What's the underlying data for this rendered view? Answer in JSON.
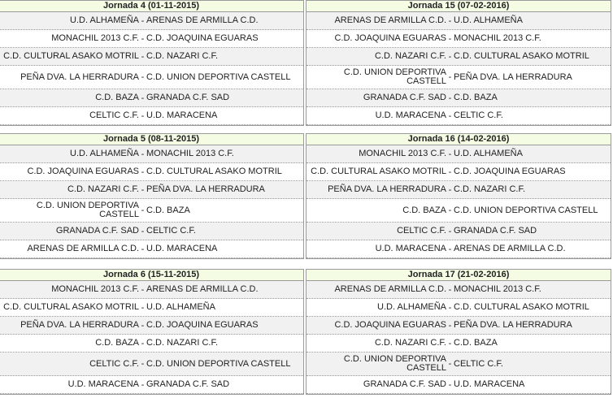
{
  "blocks": [
    {
      "title": "Jornada 4 (01-11-2015)",
      "matches": [
        [
          "U.D. ALHAMEÑA",
          "ARENAS DE ARMILLA C.D."
        ],
        [
          "MONACHIL 2013 C.F.",
          "C.D. JOAQUINA EGUARAS"
        ],
        [
          "C.D. CULTURAL ASAKO MOTRIL",
          "C.D. NAZARI C.F."
        ],
        [
          "PEÑA DVA. LA HERRADURA",
          "C.D. UNION DEPORTIVA CASTELL"
        ],
        [
          "C.D. BAZA",
          "GRANADA C.F. SAD"
        ],
        [
          "CELTIC C.F.",
          "U.D. MARACENA"
        ]
      ]
    },
    {
      "title": "Jornada 15 (07-02-2016)",
      "matches": [
        [
          "ARENAS DE ARMILLA C.D.",
          "U.D. ALHAMEÑA"
        ],
        [
          "C.D. JOAQUINA EGUARAS",
          "MONACHIL 2013 C.F."
        ],
        [
          "C.D. NAZARI C.F.",
          "C.D. CULTURAL ASAKO MOTRIL"
        ],
        [
          "C.D. UNION DEPORTIVA CASTELL",
          "PEÑA DVA. LA HERRADURA"
        ],
        [
          "GRANADA C.F. SAD",
          "C.D. BAZA"
        ],
        [
          "U.D. MARACENA",
          "CELTIC C.F."
        ]
      ]
    },
    {
      "title": "Jornada 5 (08-11-2015)",
      "matches": [
        [
          "U.D. ALHAMEÑA",
          "MONACHIL 2013 C.F."
        ],
        [
          "C.D. JOAQUINA EGUARAS",
          "C.D. CULTURAL ASAKO MOTRIL"
        ],
        [
          "C.D. NAZARI C.F.",
          "PEÑA DVA. LA HERRADURA"
        ],
        [
          "C.D. UNION DEPORTIVA CASTELL",
          "C.D. BAZA"
        ],
        [
          "GRANADA C.F. SAD",
          "CELTIC C.F."
        ],
        [
          "ARENAS DE ARMILLA C.D.",
          "U.D. MARACENA"
        ]
      ]
    },
    {
      "title": "Jornada 16 (14-02-2016)",
      "matches": [
        [
          "MONACHIL 2013 C.F.",
          "U.D. ALHAMEÑA"
        ],
        [
          "C.D. CULTURAL ASAKO MOTRIL",
          "C.D. JOAQUINA EGUARAS"
        ],
        [
          "PEÑA DVA. LA HERRADURA",
          "C.D. NAZARI C.F."
        ],
        [
          "C.D. BAZA",
          "C.D. UNION DEPORTIVA CASTELL"
        ],
        [
          "CELTIC C.F.",
          "GRANADA C.F. SAD"
        ],
        [
          "U.D. MARACENA",
          "ARENAS DE ARMILLA C.D."
        ]
      ]
    },
    {
      "title": "Jornada 6 (15-11-2015)",
      "matches": [
        [
          "MONACHIL 2013 C.F.",
          "ARENAS DE ARMILLA C.D."
        ],
        [
          "C.D. CULTURAL ASAKO MOTRIL",
          "U.D. ALHAMEÑA"
        ],
        [
          "PEÑA DVA. LA HERRADURA",
          "C.D. JOAQUINA EGUARAS"
        ],
        [
          "C.D. BAZA",
          "C.D. NAZARI C.F."
        ],
        [
          "CELTIC C.F.",
          "C.D. UNION DEPORTIVA CASTELL"
        ],
        [
          "U.D. MARACENA",
          "GRANADA C.F. SAD"
        ]
      ]
    },
    {
      "title": "Jornada 17 (21-02-2016)",
      "matches": [
        [
          "ARENAS DE ARMILLA C.D.",
          "MONACHIL 2013 C.F."
        ],
        [
          "U.D. ALHAMEÑA",
          "C.D. CULTURAL ASAKO MOTRIL"
        ],
        [
          "C.D. JOAQUINA EGUARAS",
          "PEÑA DVA. LA HERRADURA"
        ],
        [
          "C.D. NAZARI C.F.",
          "C.D. BAZA"
        ],
        [
          "C.D. UNION DEPORTIVA CASTELL",
          "CELTIC C.F."
        ],
        [
          "GRANADA C.F. SAD",
          "U.D. MARACENA"
        ]
      ]
    }
  ],
  "separator": "-"
}
